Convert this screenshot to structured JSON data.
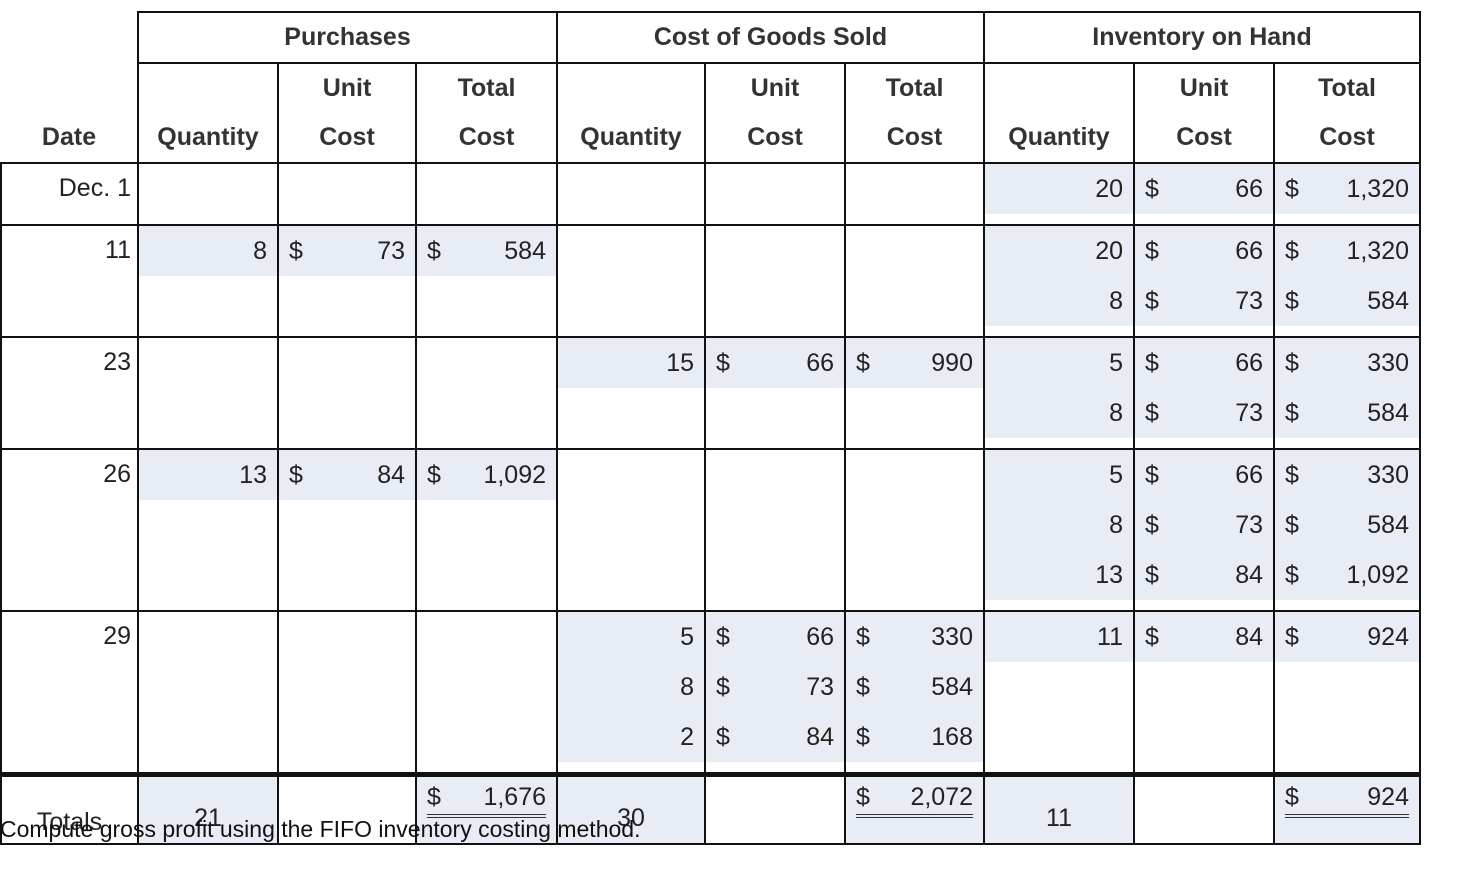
{
  "headers": {
    "purchases": "Purchases",
    "cogs": "Cost of Goods Sold",
    "inventory": "Inventory on Hand",
    "date": "Date",
    "quantity": "Quantity",
    "unit_top": "Unit",
    "total_top": "Total",
    "cost": "Cost"
  },
  "currency": "$",
  "rows": [
    {
      "date": "Dec. 1",
      "purchases": [],
      "cogs": [],
      "inventory": [
        {
          "qty": "20",
          "unit": "66",
          "total": "1,320"
        }
      ]
    },
    {
      "date": "11",
      "purchases": [
        {
          "qty": "8",
          "unit": "73",
          "total": "584"
        }
      ],
      "cogs": [],
      "inventory": [
        {
          "qty": "20",
          "unit": "66",
          "total": "1,320"
        },
        {
          "qty": "8",
          "unit": "73",
          "total": "584"
        }
      ]
    },
    {
      "date": "23",
      "purchases": [],
      "cogs": [
        {
          "qty": "15",
          "unit": "66",
          "total": "990"
        }
      ],
      "inventory": [
        {
          "qty": "5",
          "unit": "66",
          "total": "330"
        },
        {
          "qty": "8",
          "unit": "73",
          "total": "584"
        }
      ]
    },
    {
      "date": "26",
      "purchases": [
        {
          "qty": "13",
          "unit": "84",
          "total": "1,092"
        }
      ],
      "cogs": [],
      "inventory": [
        {
          "qty": "5",
          "unit": "66",
          "total": "330"
        },
        {
          "qty": "8",
          "unit": "73",
          "total": "584"
        },
        {
          "qty": "13",
          "unit": "84",
          "total": "1,092"
        }
      ]
    },
    {
      "date": "29",
      "purchases": [],
      "cogs": [
        {
          "qty": "5",
          "unit": "66",
          "total": "330"
        },
        {
          "qty": "8",
          "unit": "73",
          "total": "584"
        },
        {
          "qty": "2",
          "unit": "84",
          "total": "168"
        }
      ],
      "inventory": [
        {
          "qty": "11",
          "unit": "84",
          "total": "924"
        }
      ]
    }
  ],
  "totals": {
    "label": "Totals",
    "purchases_qty": "21",
    "purchases_total": "1,676",
    "cogs_qty": "30",
    "cogs_total": "2,072",
    "inventory_qty": "11",
    "inventory_total": "924"
  },
  "instruction": "Compute gross profit using the FIFO inventory costing method.",
  "colors": {
    "shade": "#e8ecf4",
    "border": "#111111"
  }
}
